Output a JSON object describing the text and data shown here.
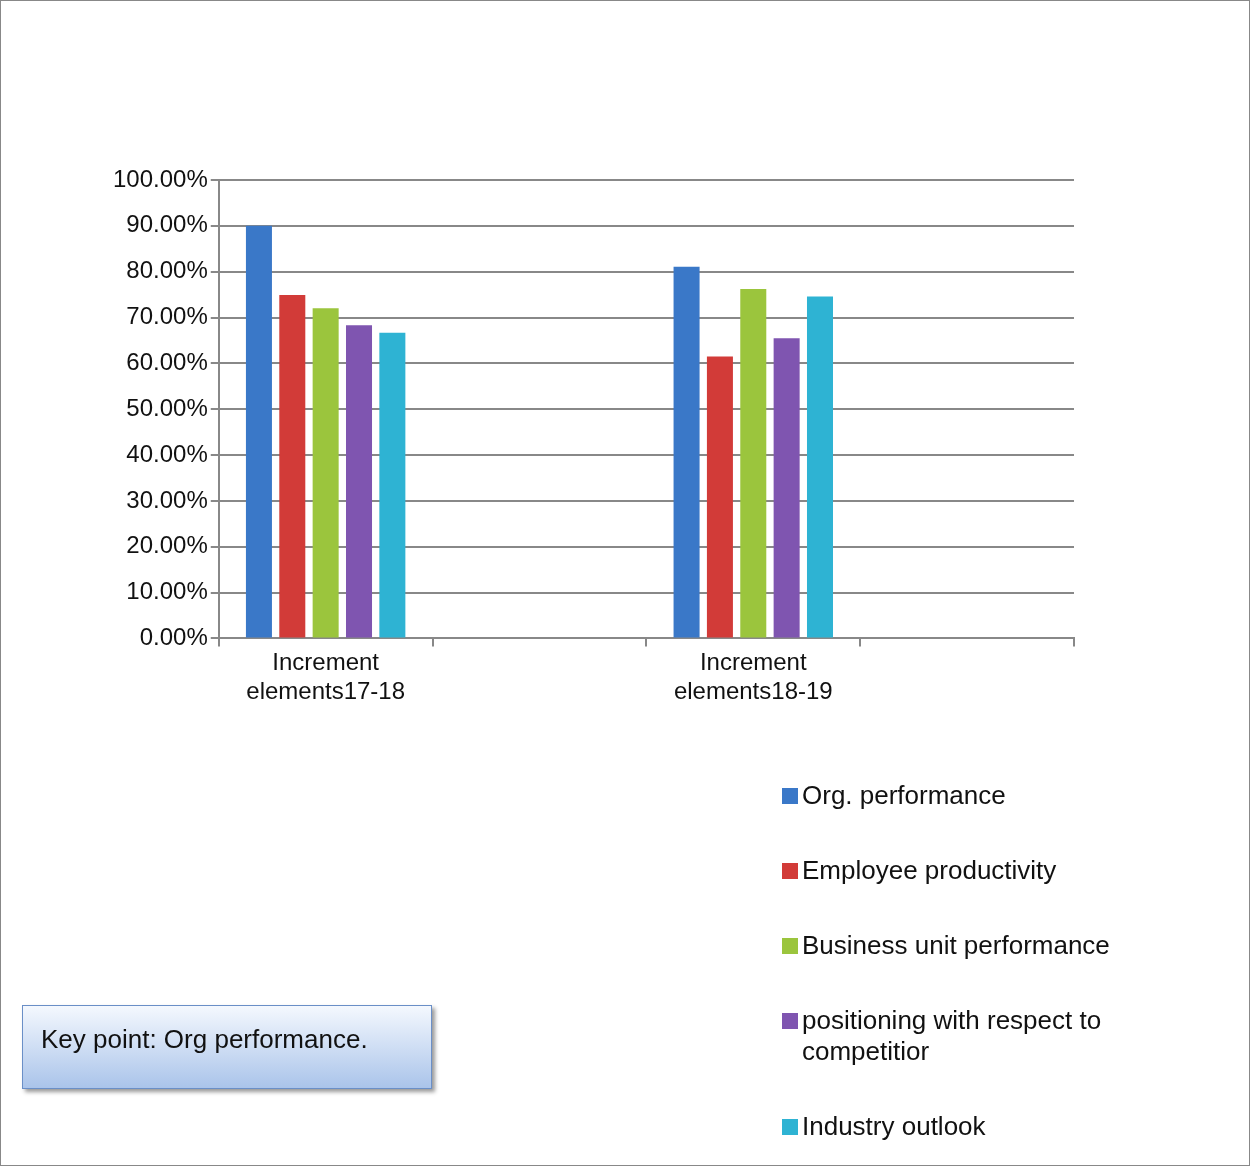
{
  "chart_data": {
    "type": "bar",
    "categories": [
      "Increment elements17-18",
      null,
      "Increment elements18-19",
      null
    ],
    "series": [
      {
        "name": "Org. performance",
        "color": "#3a78c8",
        "values": [
          90,
          null,
          81.1,
          null
        ]
      },
      {
        "name": "Employee productivity",
        "color": "#d23b38",
        "values": [
          74.9,
          null,
          61.5,
          null
        ]
      },
      {
        "name": "Business unit performance",
        "color": "#9bc53d",
        "values": [
          72.0,
          null,
          76.2,
          null
        ]
      },
      {
        "name": "positioning with respect to competitior",
        "color": "#7f55b0",
        "values": [
          68.3,
          null,
          65.5,
          null
        ]
      },
      {
        "name": "Industry outlook",
        "color": "#2eb3d3",
        "values": [
          66.7,
          null,
          74.6,
          null
        ]
      }
    ],
    "ylim": [
      0,
      100
    ],
    "yticks": [
      {
        "value": 0,
        "label": "0.00%"
      },
      {
        "value": 10,
        "label": "10.00%"
      },
      {
        "value": 20,
        "label": "20.00%"
      },
      {
        "value": 30,
        "label": "30.00%"
      },
      {
        "value": 40,
        "label": "40.00%"
      },
      {
        "value": 50,
        "label": "50.00%"
      },
      {
        "value": 60,
        "label": "60.00%"
      },
      {
        "value": 70,
        "label": "70.00%"
      },
      {
        "value": 80,
        "label": "80.00%"
      },
      {
        "value": 90,
        "label": "90.00%"
      },
      {
        "value": 100,
        "label": "100.00%"
      }
    ],
    "grid": "y",
    "legend": "bottom right",
    "annotations": [
      "Key point: Org performance."
    ]
  }
}
